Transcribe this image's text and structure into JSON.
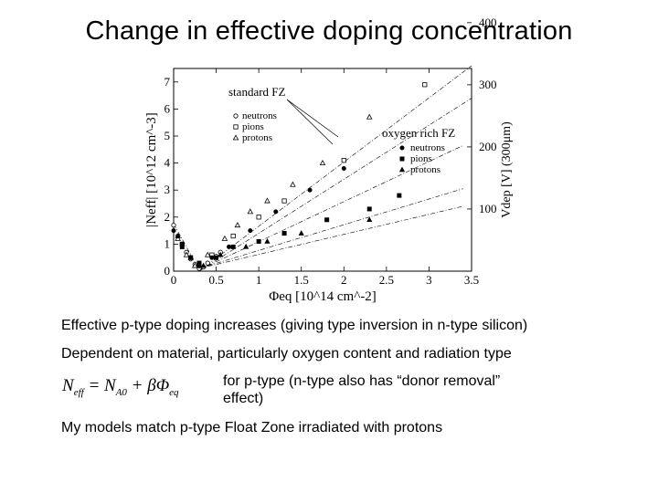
{
  "slide": {
    "title": "Change in effective doping concentration",
    "bullets": [
      "Effective p-type doping increases (giving type inversion in n-type silicon)",
      "Dependent on material, particularly oxygen content and radiation type",
      "for p-type (n-type also has “donor removal” effect)",
      "My models match p-type Float Zone irradiated with protons"
    ],
    "formula": {
      "lhs": "N",
      "lhs_sub": "eff",
      "equals": "= N",
      "a_sub": "A0",
      "plus": "+ βΦ",
      "phi_sub": "eq"
    }
  },
  "chart_data": {
    "type": "scatter",
    "title": "",
    "xlabel": "Φeq [10^14 cm^-2]",
    "ylabel": "|Neff| [10^12 cm^-3]",
    "y2label": "Vdep [V] (300μm)",
    "xlim": [
      0,
      3.5
    ],
    "ylim": [
      0,
      7.5
    ],
    "x_ticks": [
      0,
      0.5,
      1,
      1.5,
      2,
      2.5,
      3,
      3.5
    ],
    "x_tick_labels": [
      "0",
      "0.5",
      "1",
      "1.5",
      "2",
      "2.5",
      "3",
      "3.5"
    ],
    "y_ticks": [
      0,
      1,
      2,
      3,
      4,
      5,
      6,
      7
    ],
    "y_tick_labels": [
      "0",
      "1",
      "2",
      "3",
      "4",
      "5",
      "6",
      "7"
    ],
    "y2_ticks": [
      100,
      200,
      300,
      400
    ],
    "y2_tick_labels": [
      "100",
      "200",
      "300",
      "400"
    ],
    "y2_per_unit": 43.5,
    "annotations": [
      {
        "label": "standard FZ",
        "target_series": "std-protons"
      },
      {
        "label": "oxygen rich FZ",
        "target_series": "oxy-neutrons"
      }
    ],
    "series": [
      {
        "name": "neutrons",
        "group": "standard FZ",
        "marker": "circle",
        "filled": false,
        "x": [
          0.0,
          0.05,
          0.1,
          0.15,
          0.2,
          0.25,
          0.3,
          0.35,
          0.4,
          0.5,
          0.55
        ],
        "y": [
          1.7,
          1.3,
          1.0,
          0.7,
          0.45,
          0.25,
          0.1,
          0.15,
          0.3,
          0.55,
          0.7
        ]
      },
      {
        "name": "pions",
        "group": "standard FZ",
        "marker": "square",
        "filled": false,
        "x": [
          0.1,
          0.2,
          0.3,
          0.45,
          0.7,
          1.0,
          1.3,
          2.0,
          2.95
        ],
        "y": [
          1.0,
          0.5,
          0.2,
          0.6,
          1.3,
          2.0,
          2.6,
          4.1,
          6.9
        ]
      },
      {
        "name": "protons",
        "group": "standard FZ",
        "marker": "triangle",
        "filled": false,
        "x": [
          0.05,
          0.15,
          0.25,
          0.4,
          0.6,
          0.75,
          0.9,
          1.1,
          1.4,
          1.75,
          2.3
        ],
        "y": [
          1.2,
          0.6,
          0.2,
          0.6,
          1.2,
          1.7,
          2.2,
          2.6,
          3.2,
          4.0,
          5.7
        ]
      },
      {
        "name": "neutrons",
        "group": "oxygen rich FZ",
        "marker": "circle",
        "filled": true,
        "x": [
          0.0,
          0.1,
          0.2,
          0.3,
          0.45,
          0.65,
          0.9,
          1.2,
          1.6,
          2.0
        ],
        "y": [
          1.5,
          1.0,
          0.5,
          0.2,
          0.5,
          0.9,
          1.5,
          2.2,
          3.0,
          3.8
        ]
      },
      {
        "name": "pions",
        "group": "oxygen rich FZ",
        "marker": "square",
        "filled": true,
        "x": [
          0.1,
          0.3,
          0.5,
          0.7,
          1.0,
          1.3,
          1.8,
          2.3,
          2.65
        ],
        "y": [
          0.9,
          0.3,
          0.5,
          0.9,
          1.1,
          1.4,
          1.9,
          2.3,
          2.8
        ]
      },
      {
        "name": "protons",
        "group": "oxygen rich FZ",
        "marker": "triangle",
        "filled": true,
        "x": [
          0.05,
          0.2,
          0.35,
          0.55,
          0.85,
          1.1,
          1.5,
          2.3
        ],
        "y": [
          1.3,
          0.5,
          0.2,
          0.6,
          0.9,
          1.1,
          1.4,
          1.9
        ]
      }
    ],
    "fits": [
      {
        "name": "std-protons",
        "from": [
          0.3,
          0.0
        ],
        "to": [
          3.5,
          7.6
        ]
      },
      {
        "name": "std-pions",
        "from": [
          0.3,
          0.0
        ],
        "to": [
          3.5,
          6.4
        ]
      },
      {
        "name": "oxy-neutrons",
        "from": [
          0.3,
          0.05
        ],
        "to": [
          3.4,
          4.65
        ]
      },
      {
        "name": "oxy-pions",
        "from": [
          0.3,
          0.1
        ],
        "to": [
          3.4,
          3.05
        ]
      },
      {
        "name": "oxy-protons",
        "from": [
          0.3,
          0.1
        ],
        "to": [
          3.4,
          2.4
        ]
      },
      {
        "name": "decay",
        "from": [
          0.0,
          1.75
        ],
        "to": [
          0.3,
          0.05
        ]
      }
    ],
    "legends": [
      {
        "title": "",
        "entries": [
          {
            "label": "neutrons",
            "marker": "circle",
            "filled": false
          },
          {
            "label": "pions",
            "marker": "square",
            "filled": false
          },
          {
            "label": "protons",
            "marker": "triangle",
            "filled": false
          }
        ]
      },
      {
        "title": "oxygen rich FZ",
        "entries": [
          {
            "label": "neutrons",
            "marker": "circle",
            "filled": true
          },
          {
            "label": "pions",
            "marker": "square",
            "filled": true
          },
          {
            "label": "protons",
            "marker": "triangle",
            "filled": true
          }
        ]
      }
    ]
  }
}
